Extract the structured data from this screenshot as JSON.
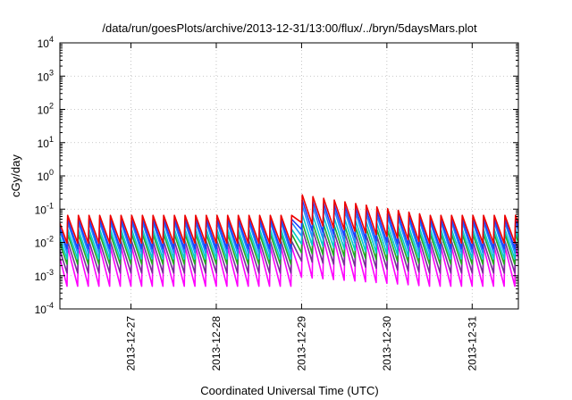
{
  "chart_data": {
    "type": "line",
    "title": "/data/run/goesPlots/archive/2013-12-31/13:00/flux/../bryn/5daysMars.plot",
    "xlabel": "Coordinated Universal Time (UTC)",
    "ylabel": "cGy/day",
    "yscale": "log",
    "ylim": [
      0.0001,
      10000
    ],
    "yticks": [
      {
        "value": 0.0001,
        "base": "10",
        "exp": "-4"
      },
      {
        "value": 0.001,
        "base": "10",
        "exp": "-3"
      },
      {
        "value": 0.01,
        "base": "10",
        "exp": "-2"
      },
      {
        "value": 0.1,
        "base": "10",
        "exp": "-1"
      },
      {
        "value": 1,
        "base": "10",
        "exp": "0"
      },
      {
        "value": 10,
        "base": "10",
        "exp": "1"
      },
      {
        "value": 100,
        "base": "10",
        "exp": "2"
      },
      {
        "value": 1000,
        "base": "10",
        "exp": "3"
      },
      {
        "value": 10000,
        "base": "10",
        "exp": "4"
      }
    ],
    "xlim": [
      "2013-12-26T04:00",
      "2013-12-31T13:00"
    ],
    "xticks": [
      "2013-12-27",
      "2013-12-28",
      "2013-12-29",
      "2013-12-30",
      "2013-12-31"
    ],
    "grid": true,
    "legend": "none",
    "spike_period_hours": 3,
    "event_window": {
      "start": "2013-12-28T22:00",
      "peak": "2013-12-29T00:00",
      "decay_hours": 36
    },
    "series": [
      {
        "color": "#ee0000",
        "base_peak": 0.065,
        "trough": 0.0095,
        "event_peak": 0.27
      },
      {
        "color": "#1f3cff",
        "base_peak": 0.05,
        "trough": 0.0065,
        "event_peak": 0.19
      },
      {
        "color": "#1e90ff",
        "base_peak": 0.04,
        "trough": 0.0048,
        "event_peak": 0.13
      },
      {
        "color": "#00cccc",
        "base_peak": 0.025,
        "trough": 0.0032,
        "event_peak": 0.07
      },
      {
        "color": "#22aa22",
        "base_peak": 0.018,
        "trough": 0.0022,
        "event_peak": 0.04
      },
      {
        "color": "#7a2b99",
        "base_peak": 0.011,
        "trough": 0.0012,
        "event_peak": 0.025
      },
      {
        "color": "#ff00ff",
        "base_peak": 0.0075,
        "trough": 0.00048,
        "event_peak": 0.014
      }
    ]
  }
}
